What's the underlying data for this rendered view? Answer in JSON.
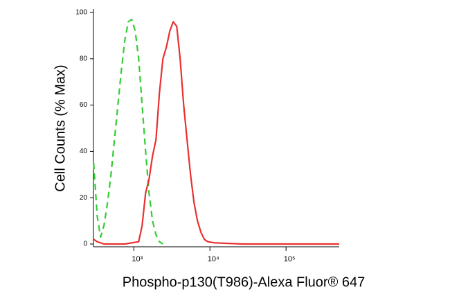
{
  "chart_data": {
    "type": "line",
    "log_x": true,
    "xlabel": "Phospho-p130(T986)-Alexa Fluor® 647",
    "ylabel": "Cell Counts (% Max)",
    "xlim": [
      295,
      500000
    ],
    "ylim": [
      0,
      100
    ],
    "xticks": [
      {
        "value": 1000,
        "label": "10³"
      },
      {
        "value": 10000,
        "label": "10⁴"
      },
      {
        "value": 100000,
        "label": "10⁵"
      }
    ],
    "yticks": [
      0,
      20,
      40,
      60,
      80,
      100
    ],
    "series": [
      {
        "color": "#33cc33",
        "dashed": true,
        "x": [
          297,
          330,
          366,
          406,
          452,
          501,
          556,
          618,
          686,
          762,
          846,
          939,
          1042,
          1158,
          1286,
          1428,
          1585,
          1760,
          1954,
          2168,
          2409
        ],
        "values": [
          35,
          12,
          3,
          8,
          18,
          30,
          45,
          60,
          75,
          88,
          96,
          97,
          92,
          80,
          60,
          40,
          22,
          10,
          4,
          1,
          0
        ]
      },
      {
        "color": "#e8302f",
        "dashed": false,
        "x": [
          297,
          330,
          406,
          762,
          1158,
          1286,
          1428,
          1585,
          1760,
          1954,
          2168,
          2409,
          2675,
          2970,
          3295,
          3664,
          4064,
          4518,
          5012,
          5560,
          6180,
          6855,
          7621,
          8453,
          9396,
          11580,
          26730,
          500000
        ],
        "values": [
          2,
          1,
          0,
          0,
          1,
          8,
          22,
          28,
          38,
          45,
          65,
          80,
          85,
          92,
          96,
          94,
          80,
          60,
          45,
          30,
          18,
          10,
          5,
          2,
          1,
          0.5,
          0,
          0
        ]
      }
    ]
  }
}
